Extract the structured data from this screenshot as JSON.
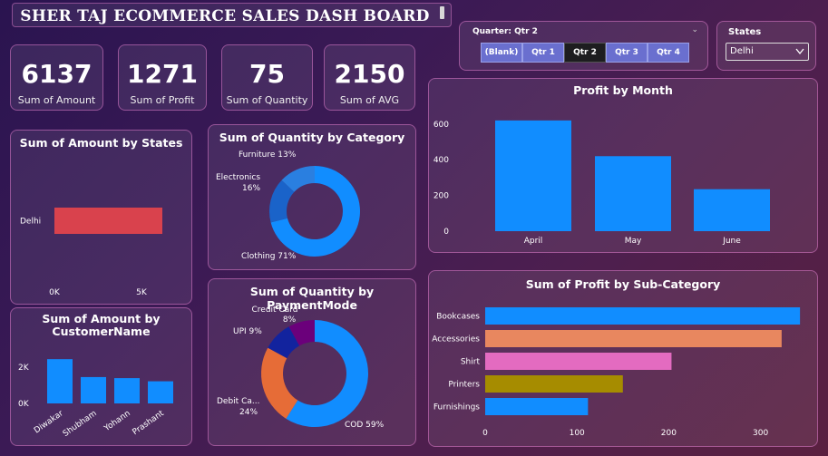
{
  "header": {
    "title": "SHER TAJ ECOMMERCE SALES DASH BOARD"
  },
  "kpis": [
    {
      "value": "6137",
      "label": "Sum of Amount"
    },
    {
      "value": "1271",
      "label": "Sum of Profit"
    },
    {
      "value": "75",
      "label": "Sum of Quantity"
    },
    {
      "value": "2150",
      "label": "Sum of AVG"
    }
  ],
  "quarter_slicer": {
    "header": "Quarter: Qtr 2",
    "options": [
      "(Blank)",
      "Qtr 1",
      "Qtr 2",
      "Qtr 3",
      "Qtr 4"
    ],
    "selected": "Qtr 2"
  },
  "states_slicer": {
    "header": "States",
    "value": "Delhi"
  },
  "colors": {
    "blue": "#118DFF",
    "red": "#D9424D",
    "orange": "#E66C37",
    "salmon": "#E8875F",
    "pink": "#E36BC0",
    "olive": "#A68C00",
    "navy": "#12239E",
    "purple": "#6B007B",
    "darkblue": "#1a63c9"
  },
  "chart_data": [
    {
      "id": "amount_by_states",
      "type": "bar",
      "orientation": "horizontal",
      "title": "Sum of Amount by States",
      "categories": [
        "Delhi"
      ],
      "values": [
        6137
      ],
      "xlim": [
        0,
        7000
      ],
      "xticks": [
        "0K",
        "5K"
      ]
    },
    {
      "id": "amount_by_customer",
      "type": "bar",
      "title": "Sum of Amount by CustomerName",
      "categories": [
        "Diwakar",
        "Shubham",
        "Yohann",
        "Prashant"
      ],
      "values": [
        2100,
        1250,
        1200,
        1050
      ],
      "ylim": [
        0,
        2500
      ],
      "yticks": [
        "0K",
        "2K"
      ]
    },
    {
      "id": "quantity_by_category",
      "type": "pie",
      "title": "Sum of Quantity by Category",
      "categories": [
        "Clothing",
        "Electronics",
        "Furniture"
      ],
      "values": [
        71,
        16,
        13
      ],
      "labels": [
        "Clothing 71%",
        "Electronics",
        "16%",
        "Furniture 13%"
      ]
    },
    {
      "id": "quantity_by_paymentmode",
      "type": "pie",
      "title": "Sum of Quantity by PaymentMode",
      "categories": [
        "COD",
        "Debit Ca...",
        "UPI",
        "Credit Card"
      ],
      "values": [
        59,
        24,
        9,
        8
      ],
      "labels": [
        "COD 59%",
        "Debit Ca...",
        "24%",
        "UPI 9%",
        "Credit Card",
        "8%"
      ]
    },
    {
      "id": "profit_by_month",
      "type": "bar",
      "title": "Profit by Month",
      "categories": [
        "April",
        "May",
        "June"
      ],
      "values": [
        620,
        420,
        235
      ],
      "ylim": [
        0,
        700
      ],
      "yticks": [
        "0",
        "200",
        "400",
        "600"
      ]
    },
    {
      "id": "profit_by_subcategory",
      "type": "bar",
      "orientation": "horizontal",
      "title": "Sum of Profit by Sub-Category",
      "categories": [
        "Bookcases",
        "Accessories",
        "Shirt",
        "Printers",
        "Furnishings"
      ],
      "values": [
        343,
        323,
        203,
        150,
        112
      ],
      "xlim": [
        0,
        350
      ],
      "xticks": [
        "0",
        "100",
        "200",
        "300"
      ]
    }
  ]
}
